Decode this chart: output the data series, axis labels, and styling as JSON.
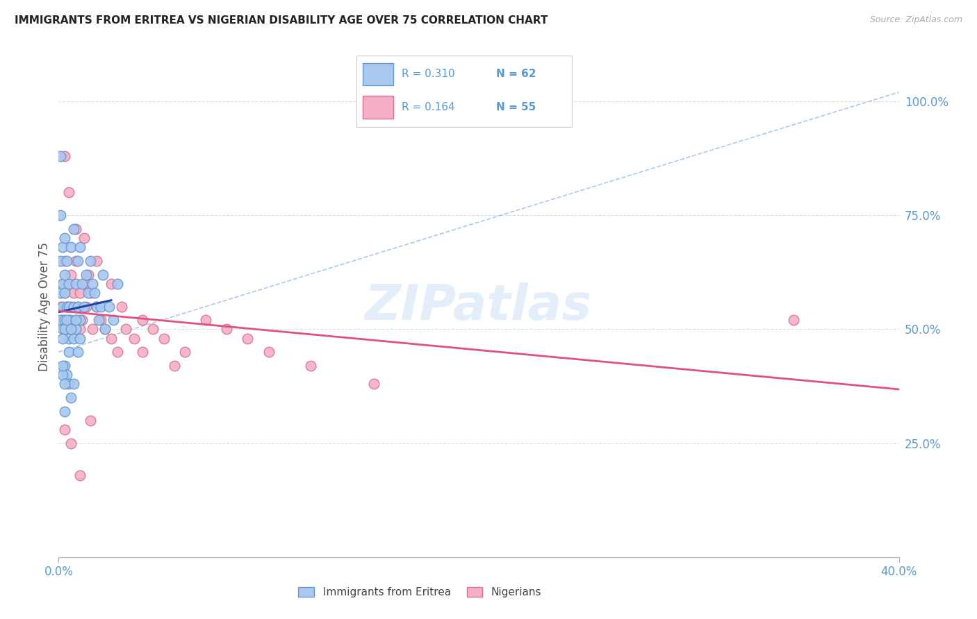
{
  "title": "IMMIGRANTS FROM ERITREA VS NIGERIAN DISABILITY AGE OVER 75 CORRELATION CHART",
  "source": "Source: ZipAtlas.com",
  "ylabel": "Disability Age Over 75",
  "xlim": [
    0.0,
    0.4
  ],
  "ylim": [
    0.0,
    1.1
  ],
  "eritrea_color": "#a8c8f0",
  "eritrea_edge": "#6699cc",
  "nigerian_color": "#f5b0c5",
  "nigerian_edge": "#dd7090",
  "blue_line_color": "#2244aa",
  "pink_line_color": "#e05080",
  "light_blue_dash_color": "#99bbee",
  "legend_R1": "R = 0.310",
  "legend_N1": "N = 62",
  "legend_R2": "R = 0.164",
  "legend_N2": "N = 55",
  "legend_text_color": "#5599dd",
  "watermark": "ZIPatlas",
  "background_color": "#ffffff",
  "grid_color": "#dddddd",
  "right_tick_color": "#5599dd",
  "title_color": "#222222",
  "source_color": "#aaaaaa",
  "ylabel_color": "#555555",
  "bottom_legend_label1": "Immigrants from Eritrea",
  "bottom_legend_label2": "Nigerians",
  "eritrea_x": [
    0.001,
    0.001,
    0.001,
    0.002,
    0.002,
    0.002,
    0.002,
    0.003,
    0.003,
    0.003,
    0.003,
    0.004,
    0.004,
    0.004,
    0.005,
    0.005,
    0.005,
    0.006,
    0.006,
    0.007,
    0.007,
    0.008,
    0.008,
    0.009,
    0.009,
    0.01,
    0.01,
    0.011,
    0.012,
    0.013,
    0.014,
    0.015,
    0.016,
    0.017,
    0.018,
    0.019,
    0.02,
    0.021,
    0.022,
    0.024,
    0.026,
    0.028,
    0.002,
    0.003,
    0.004,
    0.005,
    0.006,
    0.007,
    0.008,
    0.009,
    0.01,
    0.003,
    0.004,
    0.005,
    0.006,
    0.007,
    0.001,
    0.002,
    0.003,
    0.001,
    0.002,
    0.003
  ],
  "eritrea_y": [
    0.52,
    0.58,
    0.65,
    0.5,
    0.55,
    0.6,
    0.68,
    0.52,
    0.58,
    0.62,
    0.7,
    0.5,
    0.55,
    0.65,
    0.48,
    0.55,
    0.6,
    0.52,
    0.68,
    0.55,
    0.72,
    0.5,
    0.6,
    0.55,
    0.65,
    0.52,
    0.68,
    0.6,
    0.55,
    0.62,
    0.58,
    0.65,
    0.6,
    0.58,
    0.55,
    0.52,
    0.55,
    0.62,
    0.5,
    0.55,
    0.52,
    0.6,
    0.48,
    0.5,
    0.52,
    0.45,
    0.5,
    0.48,
    0.52,
    0.45,
    0.48,
    0.42,
    0.4,
    0.38,
    0.35,
    0.38,
    0.88,
    0.4,
    0.32,
    0.75,
    0.42,
    0.38
  ],
  "nigerian_x": [
    0.001,
    0.002,
    0.002,
    0.003,
    0.003,
    0.004,
    0.004,
    0.005,
    0.005,
    0.006,
    0.006,
    0.007,
    0.007,
    0.008,
    0.008,
    0.009,
    0.01,
    0.01,
    0.011,
    0.012,
    0.013,
    0.014,
    0.015,
    0.016,
    0.018,
    0.02,
    0.022,
    0.025,
    0.028,
    0.032,
    0.036,
    0.04,
    0.045,
    0.05,
    0.06,
    0.07,
    0.08,
    0.09,
    0.1,
    0.12,
    0.15,
    0.003,
    0.005,
    0.008,
    0.012,
    0.018,
    0.025,
    0.03,
    0.04,
    0.055,
    0.003,
    0.006,
    0.01,
    0.015,
    0.35
  ],
  "nigerian_y": [
    0.55,
    0.52,
    0.6,
    0.58,
    0.65,
    0.5,
    0.55,
    0.52,
    0.6,
    0.55,
    0.62,
    0.5,
    0.58,
    0.52,
    0.65,
    0.55,
    0.5,
    0.58,
    0.52,
    0.6,
    0.55,
    0.62,
    0.58,
    0.5,
    0.55,
    0.52,
    0.5,
    0.48,
    0.45,
    0.5,
    0.48,
    0.52,
    0.5,
    0.48,
    0.45,
    0.52,
    0.5,
    0.48,
    0.45,
    0.42,
    0.38,
    0.88,
    0.8,
    0.72,
    0.7,
    0.65,
    0.6,
    0.55,
    0.45,
    0.42,
    0.28,
    0.25,
    0.18,
    0.3,
    0.52
  ]
}
